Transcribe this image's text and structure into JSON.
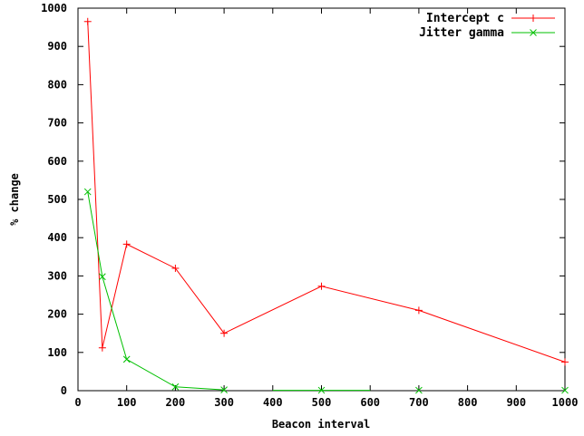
{
  "chart_data": {
    "type": "line",
    "xlabel": "Beacon interval",
    "ylabel": "% change",
    "xlim": [
      0,
      1000
    ],
    "ylim": [
      0,
      1000
    ],
    "x_ticks": [
      "0",
      "100",
      "200",
      "300",
      "400",
      "500",
      "600",
      "700",
      "800",
      "900",
      "1000"
    ],
    "y_ticks": [
      "0",
      "100",
      "200",
      "300",
      "400",
      "500",
      "600",
      "700",
      "800",
      "900",
      "1000"
    ],
    "grid": false,
    "legend_position": "top-right",
    "series": [
      {
        "name": "Intercept c",
        "color": "#ff0000",
        "marker": "plus",
        "points": [
          [
            20,
            965
          ],
          [
            50,
            112
          ],
          [
            100,
            383
          ],
          [
            200,
            320
          ],
          [
            300,
            150
          ],
          [
            500,
            273
          ],
          [
            700,
            210
          ],
          [
            1000,
            75
          ]
        ]
      },
      {
        "name": "Jitter gamma",
        "color": "#00c000",
        "marker": "cross",
        "segments": [
          [
            [
              20,
              520
            ],
            [
              50,
              298
            ],
            [
              100,
              82
            ],
            [
              200,
              10
            ],
            [
              300,
              2
            ]
          ],
          [
            [
              400,
              1
            ],
            [
              500,
              1
            ],
            [
              600,
              1
            ]
          ]
        ],
        "points": [
          [
            20,
            520
          ],
          [
            50,
            298
          ],
          [
            100,
            82
          ],
          [
            200,
            10
          ],
          [
            300,
            2
          ],
          [
            500,
            1
          ],
          [
            700,
            1
          ],
          [
            1000,
            1
          ]
        ]
      }
    ]
  }
}
